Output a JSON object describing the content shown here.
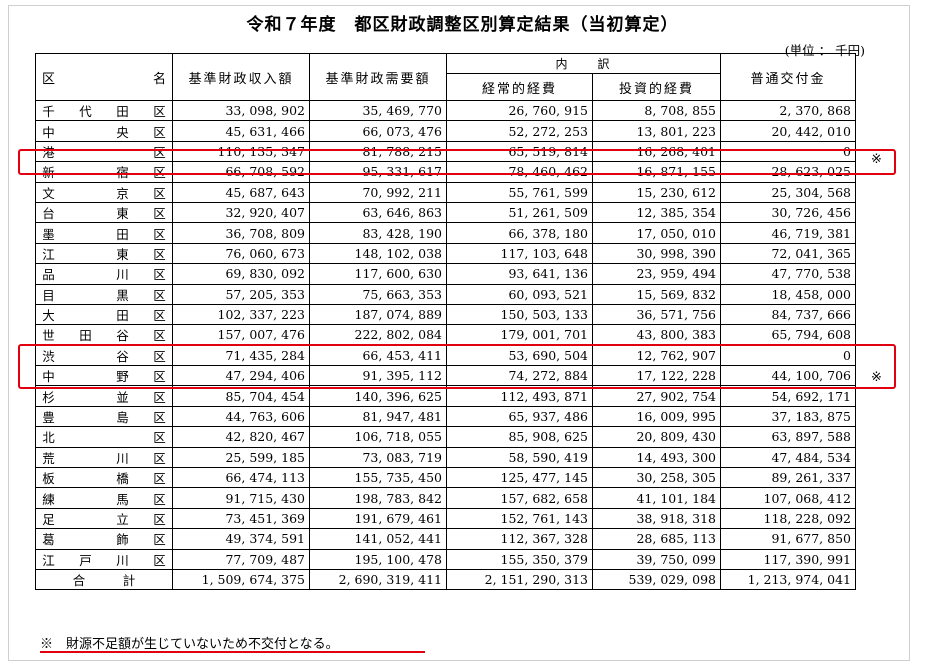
{
  "title": "令和７年度　都区財政調整区別算定結果（当初算定）",
  "unit": "(単位 ： 千円)",
  "headers": {
    "ward": "区　　　名",
    "revenue": "基準財政収入額",
    "demand": "基準財政需要額",
    "breakdown": "内　　訳",
    "recurring": "経常的経費",
    "investment": "投資的経費",
    "grant": "普通交付金"
  },
  "rows": [
    {
      "c1": "千",
      "c2": "代",
      "c3": "田",
      "c4": "区",
      "rev": "33, 098, 902",
      "dem": "35, 469, 770",
      "rec": "26, 760, 915",
      "inv": "8, 708, 855",
      "grant": "2, 370, 868"
    },
    {
      "c1": "中",
      "c2": "",
      "c3": "央",
      "c4": "区",
      "rev": "45, 631, 466",
      "dem": "66, 073, 476",
      "rec": "52, 272, 253",
      "inv": "13, 801, 223",
      "grant": "20, 442, 010"
    },
    {
      "c1": "港",
      "c2": "",
      "c3": "",
      "c4": "区",
      "rev": "110, 135, 347",
      "dem": "81, 788, 215",
      "rec": "65, 519, 814",
      "inv": "16, 268, 401",
      "grant": "0"
    },
    {
      "c1": "新",
      "c2": "",
      "c3": "宿",
      "c4": "区",
      "rev": "66, 708, 592",
      "dem": "95, 331, 617",
      "rec": "78, 460, 462",
      "inv": "16, 871, 155",
      "grant": "28, 623, 025"
    },
    {
      "c1": "文",
      "c2": "",
      "c3": "京",
      "c4": "区",
      "rev": "45, 687, 643",
      "dem": "70, 992, 211",
      "rec": "55, 761, 599",
      "inv": "15, 230, 612",
      "grant": "25, 304, 568"
    },
    {
      "c1": "台",
      "c2": "",
      "c3": "東",
      "c4": "区",
      "rev": "32, 920, 407",
      "dem": "63, 646, 863",
      "rec": "51, 261, 509",
      "inv": "12, 385, 354",
      "grant": "30, 726, 456"
    },
    {
      "c1": "墨",
      "c2": "",
      "c3": "田",
      "c4": "区",
      "rev": "36, 708, 809",
      "dem": "83, 428, 190",
      "rec": "66, 378, 180",
      "inv": "17, 050, 010",
      "grant": "46, 719, 381"
    },
    {
      "c1": "江",
      "c2": "",
      "c3": "東",
      "c4": "区",
      "rev": "76, 060, 673",
      "dem": "148, 102, 038",
      "rec": "117, 103, 648",
      "inv": "30, 998, 390",
      "grant": "72, 041, 365"
    },
    {
      "c1": "品",
      "c2": "",
      "c3": "川",
      "c4": "区",
      "rev": "69, 830, 092",
      "dem": "117, 600, 630",
      "rec": "93, 641, 136",
      "inv": "23, 959, 494",
      "grant": "47, 770, 538"
    },
    {
      "c1": "目",
      "c2": "",
      "c3": "黒",
      "c4": "区",
      "rev": "57, 205, 353",
      "dem": "75, 663, 353",
      "rec": "60, 093, 521",
      "inv": "15, 569, 832",
      "grant": "18, 458, 000"
    },
    {
      "c1": "大",
      "c2": "",
      "c3": "田",
      "c4": "区",
      "rev": "102, 337, 223",
      "dem": "187, 074, 889",
      "rec": "150, 503, 133",
      "inv": "36, 571, 756",
      "grant": "84, 737, 666"
    },
    {
      "c1": "世",
      "c2": "田",
      "c3": "谷",
      "c4": "区",
      "rev": "157, 007, 476",
      "dem": "222, 802, 084",
      "rec": "179, 001, 701",
      "inv": "43, 800, 383",
      "grant": "65, 794, 608"
    },
    {
      "c1": "渋",
      "c2": "",
      "c3": "谷",
      "c4": "区",
      "rev": "71, 435, 284",
      "dem": "66, 453, 411",
      "rec": "53, 690, 504",
      "inv": "12, 762, 907",
      "grant": "0"
    },
    {
      "c1": "中",
      "c2": "",
      "c3": "野",
      "c4": "区",
      "rev": "47, 294, 406",
      "dem": "91, 395, 112",
      "rec": "74, 272, 884",
      "inv": "17, 122, 228",
      "grant": "44, 100, 706"
    },
    {
      "c1": "杉",
      "c2": "",
      "c3": "並",
      "c4": "区",
      "rev": "85, 704, 454",
      "dem": "140, 396, 625",
      "rec": "112, 493, 871",
      "inv": "27, 902, 754",
      "grant": "54, 692, 171"
    },
    {
      "c1": "豊",
      "c2": "",
      "c3": "島",
      "c4": "区",
      "rev": "44, 763, 606",
      "dem": "81, 947, 481",
      "rec": "65, 937, 486",
      "inv": "16, 009, 995",
      "grant": "37, 183, 875"
    },
    {
      "c1": "北",
      "c2": "",
      "c3": "",
      "c4": "区",
      "rev": "42, 820, 467",
      "dem": "106, 718, 055",
      "rec": "85, 908, 625",
      "inv": "20, 809, 430",
      "grant": "63, 897, 588"
    },
    {
      "c1": "荒",
      "c2": "",
      "c3": "川",
      "c4": "区",
      "rev": "25, 599, 185",
      "dem": "73, 083, 719",
      "rec": "58, 590, 419",
      "inv": "14, 493, 300",
      "grant": "47, 484, 534"
    },
    {
      "c1": "板",
      "c2": "",
      "c3": "橋",
      "c4": "区",
      "rev": "66, 474, 113",
      "dem": "155, 735, 450",
      "rec": "125, 477, 145",
      "inv": "30, 258, 305",
      "grant": "89, 261, 337"
    },
    {
      "c1": "練",
      "c2": "",
      "c3": "馬",
      "c4": "区",
      "rev": "91, 715, 430",
      "dem": "198, 783, 842",
      "rec": "157, 682, 658",
      "inv": "41, 101, 184",
      "grant": "107, 068, 412"
    },
    {
      "c1": "足",
      "c2": "",
      "c3": "立",
      "c4": "区",
      "rev": "73, 451, 369",
      "dem": "191, 679, 461",
      "rec": "152, 761, 143",
      "inv": "38, 918, 318",
      "grant": "118, 228, 092"
    },
    {
      "c1": "葛",
      "c2": "",
      "c3": "飾",
      "c4": "区",
      "rev": "49, 374, 591",
      "dem": "141, 052, 441",
      "rec": "112, 367, 328",
      "inv": "28, 685, 113",
      "grant": "91, 677, 850",
      "bold": true
    },
    {
      "c1": "江",
      "c2": "戸",
      "c3": "川",
      "c4": "区",
      "rev": "77, 709, 487",
      "dem": "195, 100, 478",
      "rec": "155, 350, 379",
      "inv": "39, 750, 099",
      "grant": "117, 390, 991"
    }
  ],
  "total": {
    "label": "合　　　計",
    "rev": "1, 509, 674, 375",
    "dem": "2, 690, 319, 411",
    "rec": "2, 151, 290, 313",
    "inv": "539, 029, 098",
    "grant": "1, 213, 974, 041"
  },
  "mark": "※",
  "note": "※　財源不足額が生じていないため不交付となる。",
  "highlight_color": "#e00010"
}
